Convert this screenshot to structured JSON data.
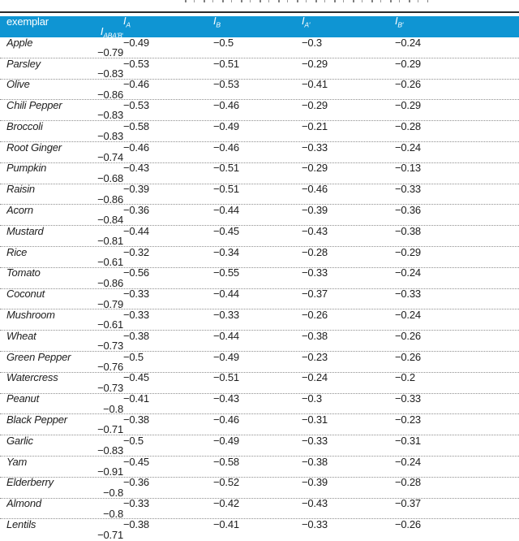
{
  "colors": {
    "header_background": "#0f95d3",
    "header_text": "#ffffff",
    "top_rule": "#2a2a2a",
    "row_divider": "#8f8f8f",
    "body_text": "#1d1d1d"
  },
  "table": {
    "header": {
      "exemplar_label": "exemplar",
      "metric_columns": [
        {
          "base": "I",
          "sub": "A"
        },
        {
          "base": "I",
          "sub": "B"
        },
        {
          "base": "I",
          "sub": "A′"
        },
        {
          "base": "I",
          "sub": "B′"
        },
        {
          "base": "I",
          "sub": "ABA′B′"
        }
      ]
    },
    "rows": [
      {
        "name": "Apple",
        "values": [
          "−0.49",
          "−0.5",
          "−0.3",
          "−0.24",
          "−0.79"
        ]
      },
      {
        "name": "Parsley",
        "values": [
          "−0.53",
          "−0.51",
          "−0.29",
          "−0.29",
          "−0.83"
        ]
      },
      {
        "name": "Olive",
        "values": [
          "−0.46",
          "−0.53",
          "−0.41",
          "−0.26",
          "−0.86"
        ]
      },
      {
        "name": "Chili Pepper",
        "values": [
          "−0.53",
          "−0.46",
          "−0.29",
          "−0.29",
          "−0.83"
        ]
      },
      {
        "name": "Broccoli",
        "values": [
          "−0.58",
          "−0.49",
          "−0.21",
          "−0.28",
          "−0.83"
        ]
      },
      {
        "name": "Root Ginger",
        "values": [
          "−0.46",
          "−0.46",
          "−0.33",
          "−0.24",
          "−0.74"
        ]
      },
      {
        "name": "Pumpkin",
        "values": [
          "−0.43",
          "−0.51",
          "−0.29",
          "−0.13",
          "−0.68"
        ]
      },
      {
        "name": "Raisin",
        "values": [
          "−0.39",
          "−0.51",
          "−0.46",
          "−0.33",
          "−0.86"
        ]
      },
      {
        "name": "Acorn",
        "values": [
          "−0.36",
          "−0.44",
          "−0.39",
          "−0.36",
          "−0.84"
        ]
      },
      {
        "name": "Mustard",
        "values": [
          "−0.44",
          "−0.45",
          "−0.43",
          "−0.38",
          "−0.81"
        ]
      },
      {
        "name": "Rice",
        "values": [
          "−0.32",
          "−0.34",
          "−0.28",
          "−0.29",
          "−0.61"
        ]
      },
      {
        "name": "Tomato",
        "values": [
          "−0.56",
          "−0.55",
          "−0.33",
          "−0.24",
          "−0.86"
        ]
      },
      {
        "name": "Coconut",
        "values": [
          "−0.33",
          "−0.44",
          "−0.37",
          "−0.33",
          "−0.79"
        ]
      },
      {
        "name": "Mushroom",
        "values": [
          "−0.33",
          "−0.33",
          "−0.26",
          "−0.24",
          "−0.61"
        ]
      },
      {
        "name": "Wheat",
        "values": [
          "−0.38",
          "−0.44",
          "−0.38",
          "−0.26",
          "−0.73"
        ]
      },
      {
        "name": "Green Pepper",
        "values": [
          "−0.5",
          "−0.49",
          "−0.23",
          "−0.26",
          "−0.76"
        ]
      },
      {
        "name": "Watercress",
        "values": [
          "−0.45",
          "−0.51",
          "−0.24",
          "−0.2",
          "−0.73"
        ]
      },
      {
        "name": "Peanut",
        "values": [
          "−0.41",
          "−0.43",
          "−0.3",
          "−0.33",
          "−0.8"
        ]
      },
      {
        "name": "Black Pepper",
        "values": [
          "−0.38",
          "−0.46",
          "−0.31",
          "−0.23",
          "−0.71"
        ]
      },
      {
        "name": "Garlic",
        "values": [
          "−0.5",
          "−0.49",
          "−0.33",
          "−0.31",
          "−0.83"
        ]
      },
      {
        "name": "Yam",
        "values": [
          "−0.45",
          "−0.58",
          "−0.38",
          "−0.24",
          "−0.91"
        ]
      },
      {
        "name": "Elderberry",
        "values": [
          "−0.36",
          "−0.52",
          "−0.39",
          "−0.28",
          "−0.8"
        ]
      },
      {
        "name": "Almond",
        "values": [
          "−0.33",
          "−0.42",
          "−0.43",
          "−0.37",
          "−0.8"
        ]
      },
      {
        "name": "Lentils",
        "values": [
          "−0.38",
          "−0.41",
          "−0.33",
          "−0.26",
          "−0.71"
        ]
      }
    ]
  }
}
